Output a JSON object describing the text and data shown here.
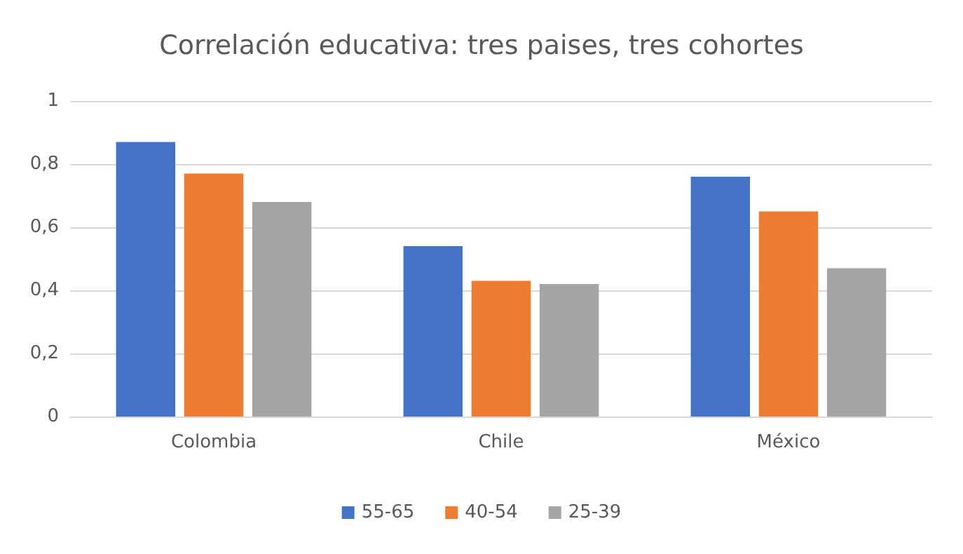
{
  "chart_data": {
    "type": "bar",
    "title": "Correlación educativa: tres paises, tres cohortes",
    "categories": [
      "Colombia",
      "Chile",
      "México"
    ],
    "series": [
      {
        "name": "55-65",
        "color": "#4472c4",
        "values": [
          0.87,
          0.54,
          0.76
        ]
      },
      {
        "name": "40-54",
        "color": "#ed7d31",
        "values": [
          0.77,
          0.43,
          0.65
        ]
      },
      {
        "name": "25-39",
        "color": "#a5a5a5",
        "values": [
          0.68,
          0.42,
          0.47
        ]
      }
    ],
    "ylim": [
      0,
      1
    ],
    "yticks": [
      0,
      {
        "value": 0.2,
        "label": "0,2"
      },
      {
        "value": 0.4,
        "label": "0,4"
      },
      {
        "value": 0.6,
        "label": "0,6"
      },
      {
        "value": 0.8,
        "label": "0,8"
      },
      1
    ],
    "grid": "y",
    "legend": "bottom"
  }
}
